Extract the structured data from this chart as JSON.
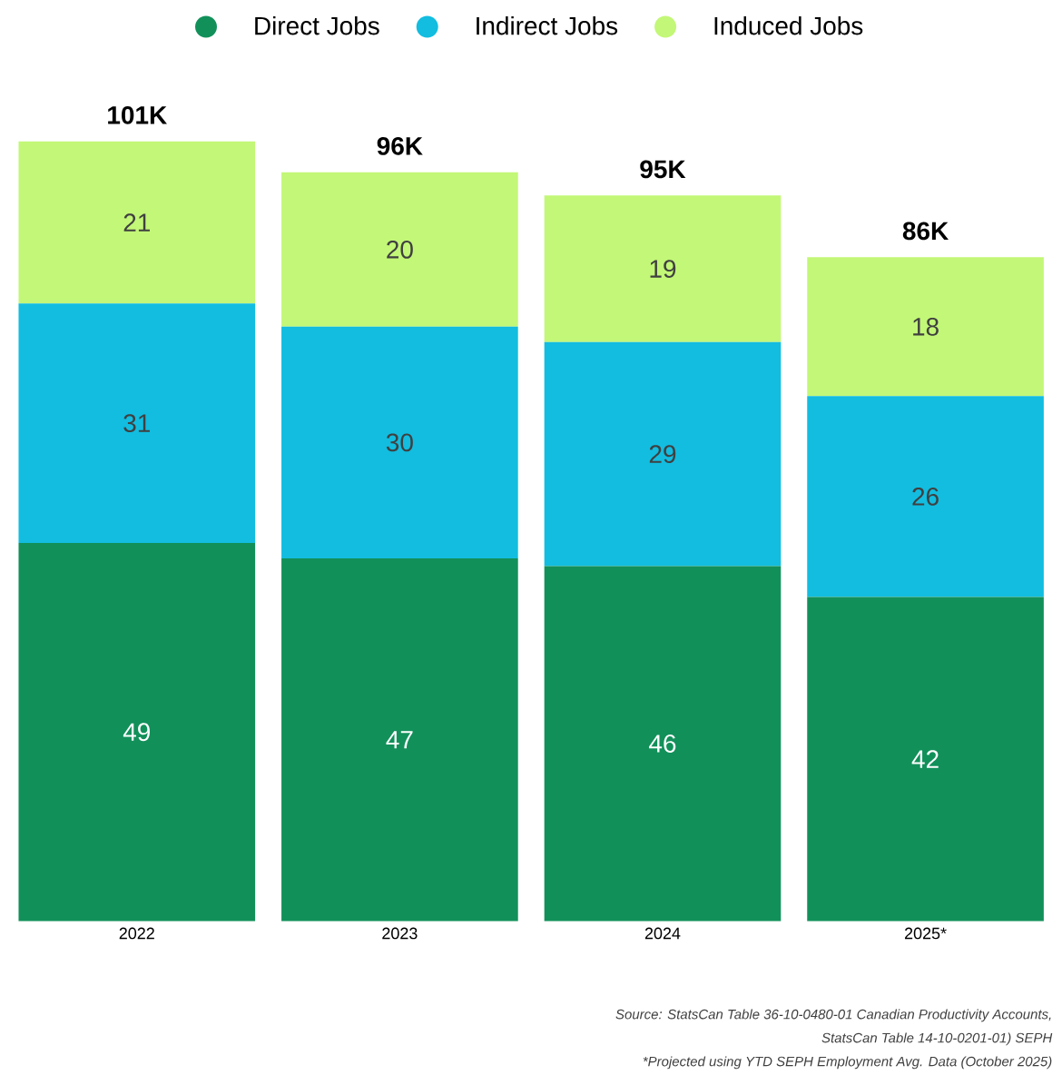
{
  "chart_data": {
    "type": "bar",
    "stacked": true,
    "categories": [
      "2022",
      "2023",
      "2024",
      "2025*"
    ],
    "series": [
      {
        "name": "Direct Jobs",
        "color": "#12905a",
        "values": [
          49,
          47,
          46,
          42
        ],
        "value_labels": [
          "49",
          "47",
          "46",
          "42"
        ]
      },
      {
        "name": "Indirect Jobs",
        "color": "#12bde0",
        "values": [
          31,
          30,
          29,
          26
        ],
        "value_labels": [
          "31",
          "30",
          "29",
          "26"
        ]
      },
      {
        "name": "Induced Jobs",
        "color": "#c3f777",
        "values": [
          21,
          20,
          19,
          18
        ],
        "value_labels": [
          "21",
          "20",
          "19",
          "18"
        ]
      }
    ],
    "totals": [
      "101K",
      "96K",
      "95K",
      "86K"
    ],
    "legend": "top",
    "annotations": [
      "Source: StatsCan Table 36-10-0480-01 Canadian Productivity Accounts,",
      "StatsCan Table 14-10-0201-01) SEPH",
      "*Projected using YTD SEPH Employment Avg. Data (October 2025)"
    ]
  }
}
